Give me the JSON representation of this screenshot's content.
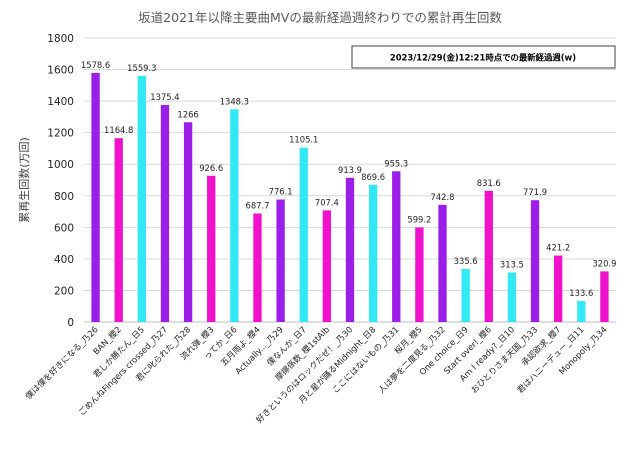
{
  "chart_data": {
    "type": "bar",
    "title": "坂道2021年以降主要曲MVの最新経過週終わりでの累計再生回数",
    "ylabel": "累再生回数(万回)",
    "annotation": "2023/12/29(金)12:21時点での最新経過週(w)",
    "ylim": [
      0,
      1800
    ],
    "yticks": [
      0,
      200,
      400,
      600,
      800,
      1000,
      1200,
      1400,
      1600,
      1800
    ],
    "grid": true,
    "legend": "none",
    "categories": [
      "僕は僕を好きになる_乃26",
      "BAN_櫻2",
      "君しか勝たん_日5",
      "ごめんねFingers crossed_乃27",
      "君に叱られた_乃28",
      "流れ弾_櫻3",
      "ってか_日6",
      "五月雨よ_櫻4",
      "Actually..._乃29",
      "僕なんか_日7",
      "摩擦係数_櫻1stAlb",
      "好きというのはロックだぜ！_乃30",
      "月と星が踊るMidnight_日8",
      "ここにはないもの_乃31",
      "桜月_櫻5",
      "人は夢を二度見る_乃32",
      "One choice_日9",
      "Start over!_櫻6",
      "Am I ready?_日10",
      "おひとりさま天国_乃33",
      "承認欲求_櫻7",
      "君はハニーデュー_日11",
      "Monopoly_乃34"
    ],
    "values": [
      1578.6,
      1164.8,
      1559.3,
      1375.4,
      1266,
      926.6,
      1348.3,
      687.7,
      776.1,
      1105.1,
      707.4,
      913.9,
      869.6,
      955.3,
      599.2,
      742.8,
      335.6,
      831.6,
      313.5,
      771.9,
      421.2,
      133.6,
      320.9
    ],
    "value_labels": [
      "1578.6",
      "1164.8",
      "1559.3",
      "1375.4",
      "1266",
      "926.6",
      "1348.3",
      "687.7",
      "776.1",
      "1105.1",
      "707.4",
      "913.9",
      "869.6",
      "955.3",
      "599.2",
      "742.8",
      "335.6",
      "831.6",
      "313.5",
      "771.9",
      "421.2",
      "133.6",
      "320.9"
    ],
    "bar_colors": [
      "#9B1FE8",
      "#F011CC",
      "#33E8F5",
      "#9B1FE8",
      "#9B1FE8",
      "#F011CC",
      "#33E8F5",
      "#F011CC",
      "#9B1FE8",
      "#33E8F5",
      "#F011CC",
      "#9B1FE8",
      "#33E8F5",
      "#9B1FE8",
      "#F011CC",
      "#9B1FE8",
      "#33E8F5",
      "#F011CC",
      "#33E8F5",
      "#9B1FE8",
      "#F011CC",
      "#33E8F5",
      "#F011CC"
    ]
  }
}
